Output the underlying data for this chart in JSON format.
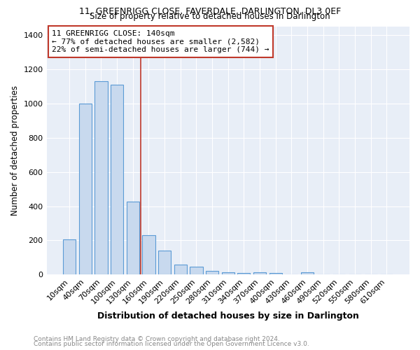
{
  "title1": "11, GREENRIGG CLOSE, FAVERDALE, DARLINGTON, DL3 0EF",
  "title2": "Size of property relative to detached houses in Darlington",
  "xlabel": "Distribution of detached houses by size in Darlington",
  "ylabel": "Number of detached properties",
  "categories": [
    "10sqm",
    "40sqm",
    "70sqm",
    "100sqm",
    "130sqm",
    "160sqm",
    "190sqm",
    "220sqm",
    "250sqm",
    "280sqm",
    "310sqm",
    "340sqm",
    "370sqm",
    "400sqm",
    "430sqm",
    "460sqm",
    "490sqm",
    "520sqm",
    "550sqm",
    "580sqm",
    "610sqm"
  ],
  "values": [
    207,
    1000,
    1130,
    1110,
    425,
    230,
    140,
    60,
    45,
    22,
    13,
    10,
    13,
    10,
    0,
    15,
    0,
    0,
    0,
    0,
    0
  ],
  "bar_color": "#c8d9ee",
  "bar_edge_color": "#5b9bd5",
  "vline_color": "#c0392b",
  "vline_pos": 4.5,
  "annotation_text": "11 GREENRIGG CLOSE: 140sqm\n← 77% of detached houses are smaller (2,582)\n22% of semi-detached houses are larger (744) →",
  "annotation_box_facecolor": "white",
  "annotation_box_edgecolor": "#c0392b",
  "ylim": [
    0,
    1450
  ],
  "yticks": [
    0,
    200,
    400,
    600,
    800,
    1000,
    1200,
    1400
  ],
  "plot_bg_color": "#e8eef7",
  "fig_bg_color": "#ffffff",
  "grid_color": "#ffffff",
  "footer1": "Contains HM Land Registry data © Crown copyright and database right 2024.",
  "footer2": "Contains public sector information licensed under the Open Government Licence v3.0.",
  "footer_color": "#888888"
}
